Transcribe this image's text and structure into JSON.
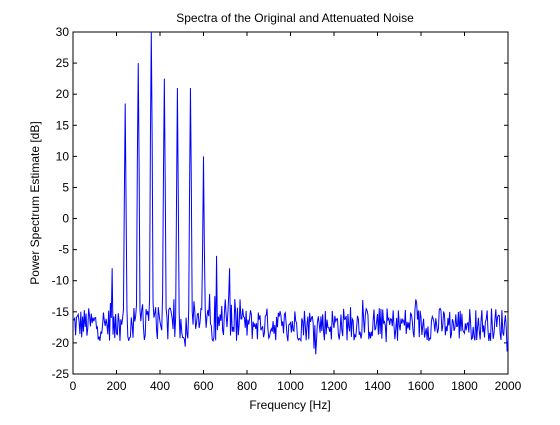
{
  "chart_data": {
    "type": "line",
    "title": "Spectra of the Original and Attenuated Noise",
    "xlabel": "Frequency [Hz]",
    "ylabel": "Power Spectrum Estimate [dB]",
    "xlim": [
      0,
      2000
    ],
    "ylim": [
      -25,
      30
    ],
    "xticks": [
      0,
      200,
      400,
      600,
      800,
      1000,
      1200,
      1400,
      1600,
      1800,
      2000
    ],
    "yticks": [
      -25,
      -20,
      -15,
      -10,
      -5,
      0,
      5,
      10,
      15,
      20,
      25,
      30
    ],
    "grid": false,
    "line_color": "#0000ff",
    "noise_floor_db": -17,
    "noise_spread_db": [
      -22,
      -13
    ],
    "frequency_step_hz": 4,
    "peaks": [
      {
        "x": 180,
        "y": -8
      },
      {
        "x": 240,
        "y": 18.5
      },
      {
        "x": 300,
        "y": 25
      },
      {
        "x": 360,
        "y": 30
      },
      {
        "x": 420,
        "y": 22.5
      },
      {
        "x": 480,
        "y": 21
      },
      {
        "x": 540,
        "y": 21
      },
      {
        "x": 600,
        "y": 10
      },
      {
        "x": 660,
        "y": -6
      },
      {
        "x": 720,
        "y": -8
      }
    ],
    "series": [
      {
        "values_note": ""
      }
    ]
  }
}
